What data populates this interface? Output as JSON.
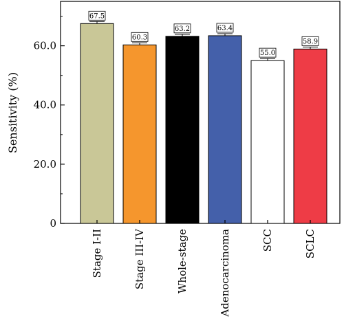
{
  "chart_data": {
    "type": "bar",
    "title": "",
    "xlabel": "",
    "ylabel": "Sensitivity (%)",
    "ylim": [
      0,
      75
    ],
    "yticks": [
      0,
      20,
      40,
      60
    ],
    "ytick_labels": [
      "0",
      "20.0",
      "40.0",
      "60.0"
    ],
    "grid": false,
    "categories": [
      "Stage I-II",
      "Stage III-IV",
      "Whole-stage",
      "Adenocarcinoma",
      "SCC",
      "SCLC"
    ],
    "values": [
      67.5,
      60.3,
      63.2,
      63.4,
      55.0,
      58.9
    ],
    "value_labels": [
      "67.5",
      "60.3",
      "63.2",
      "63.4",
      "55.0",
      "58.9"
    ],
    "colors": [
      "#c9c797",
      "#f5962d",
      "#000000",
      "#4460aa",
      "#ffffff",
      "#ee3c46"
    ]
  }
}
